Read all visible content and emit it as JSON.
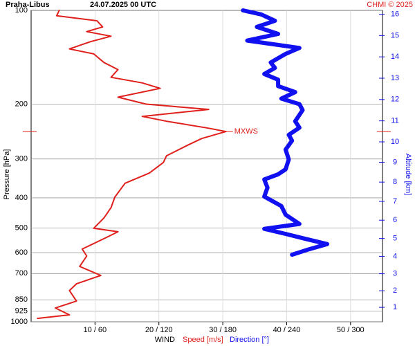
{
  "chart_data": {
    "type": "profile",
    "title": "Praha-Libus",
    "subtitle": "24.07.2025 00 UTC",
    "source": "CHMI © 2025",
    "x_label": "WIND",
    "y_label": "Pressure [hPa]",
    "y2_label": "Altitude [km]",
    "log_y": true,
    "grid": true,
    "xlim": [
      0,
      55
    ],
    "xticks": [
      {
        "value": 10,
        "label": "10 / 60"
      },
      {
        "value": 20,
        "label": "20 / 120"
      },
      {
        "value": 30,
        "label": "30 / 180"
      },
      {
        "value": 40,
        "label": "40 / 240"
      },
      {
        "value": 50,
        "label": "50 / 300"
      }
    ],
    "ylim": [
      100,
      1000
    ],
    "yticks": [
      100,
      200,
      300,
      400,
      500,
      600,
      700,
      850,
      925,
      1000
    ],
    "y2ticks": [
      1,
      2,
      3,
      4,
      5,
      6,
      7,
      8,
      9,
      10,
      11,
      12,
      13,
      14,
      15,
      16
    ],
    "annotation": {
      "label": "MXWS",
      "pressure": 245,
      "value": 30.5
    },
    "series": [
      {
        "name": "Speed [m/s]",
        "color": "#e0201c",
        "xlim": [
          0,
          55
        ],
        "values": [
          4.4,
          4.0,
          10.3,
          11.2,
          8.7,
          12.5,
          9.3,
          6.0,
          9.8,
          11.4,
          13.6,
          12.5,
          17.4,
          20.2,
          13.6,
          18.0,
          27.8,
          17.4,
          21.2,
          27.8,
          30.5,
          26.7,
          24.5,
          21.2,
          20.7,
          18.5,
          14.7,
          13.1,
          12.5,
          11.4,
          9.8,
          13.6,
          11.4,
          8.0,
          8.7,
          7.6,
          10.9,
          7.1,
          6.0,
          7.1,
          3.8,
          6.0,
          1.0
        ],
        "pressure": [
          100,
          104,
          108,
          113,
          117,
          121,
          126,
          133,
          138,
          147,
          155,
          164,
          171,
          178,
          190,
          200,
          208,
          219,
          227,
          239,
          245,
          258,
          271,
          293,
          308,
          333,
          359,
          398,
          430,
          464,
          501,
          514,
          541,
          584,
          615,
          664,
          710,
          755,
          794,
          858,
          903,
          950,
          975
        ]
      },
      {
        "name": "Direction [°]",
        "color": "#1010f0",
        "xlim": [
          0,
          330
        ],
        "values": [
          199,
          216,
          229,
          212,
          232,
          203,
          252,
          239,
          225,
          229,
          219,
          232,
          232,
          248,
          235,
          252,
          255,
          248,
          252,
          242,
          245,
          239,
          242,
          239,
          232,
          219,
          222,
          219,
          235,
          239,
          252,
          219,
          239,
          258,
          278,
          261,
          245
        ],
        "pressure": [
          100,
          103,
          108,
          113,
          119,
          125,
          132,
          138,
          147,
          153,
          160,
          167,
          175,
          183,
          192,
          200,
          209,
          227,
          238,
          251,
          262,
          280,
          301,
          324,
          336,
          349,
          371,
          396,
          425,
          453,
          485,
          503,
          522,
          542,
          563,
          585,
          609
        ]
      }
    ]
  }
}
